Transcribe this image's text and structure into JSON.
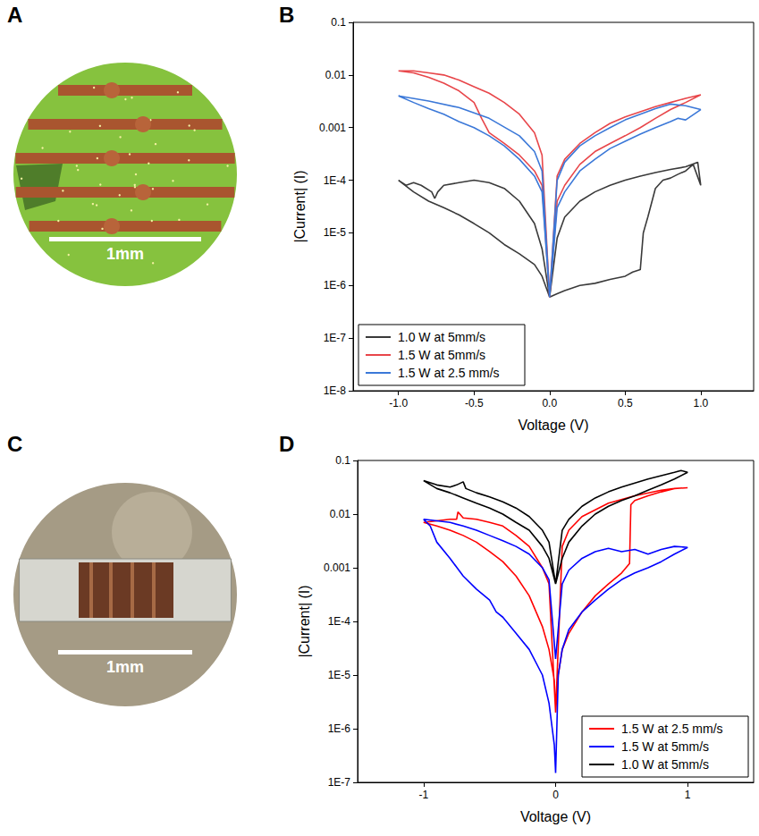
{
  "photos": [
    {
      "panel": "A",
      "scale_bar_label": "1mm"
    },
    {
      "panel": "C",
      "scale_bar_label": "1mm"
    }
  ],
  "chart_data": [
    {
      "panel": "B",
      "type": "line",
      "x_label": "Voltage (V)",
      "y_label": "|Current| (I)",
      "log": "y",
      "grid": false,
      "legend": "lower left",
      "xlim": [
        -1.3,
        1.35
      ],
      "xticks": [
        {
          "value": -1,
          "label": "-1.0"
        },
        {
          "value": -0.5,
          "label": "-0.5"
        },
        {
          "value": 0,
          "label": "0.0"
        },
        {
          "value": 0.5,
          "label": "0.5"
        },
        {
          "value": 1,
          "label": "1.0"
        }
      ],
      "ylim": [
        1e-08,
        0.1
      ],
      "yticks": [
        {
          "value": 1e-08,
          "label": "1E-8"
        },
        {
          "value": 1e-07,
          "label": "1E-7"
        },
        {
          "value": 1e-06,
          "label": "1E-6"
        },
        {
          "value": 1e-05,
          "label": "1E-5"
        },
        {
          "value": 0.0001,
          "label": "1E-4"
        },
        0.001,
        0.01,
        0.1
      ],
      "series": [
        {
          "name": "1.0 W at 5mm/s",
          "color": "#3a3a3a",
          "x": [
            0,
            0.05,
            0.1,
            0.2,
            0.3,
            0.4,
            0.5,
            0.55,
            0.6,
            0.62,
            0.65,
            0.7,
            0.75,
            0.8,
            0.85,
            0.9,
            0.95,
            1.0,
            0.98,
            0.9,
            0.8,
            0.7,
            0.6,
            0.5,
            0.4,
            0.3,
            0.2,
            0.1,
            0.05,
            0,
            -0.05,
            -0.1,
            -0.2,
            -0.3,
            -0.4,
            -0.5,
            -0.6,
            -0.7,
            -0.8,
            -0.9,
            -1.0,
            -0.95,
            -0.9,
            -0.85,
            -0.78,
            -0.76,
            -0.74,
            -0.7,
            -0.6,
            -0.5,
            -0.4,
            -0.3,
            -0.2,
            -0.1,
            -0.05,
            0
          ],
          "values": [
            6e-07,
            7e-07,
            8e-07,
            1e-06,
            1.1e-06,
            1.3e-06,
            1.5e-06,
            1.8e-06,
            2e-06,
            1e-05,
            2e-05,
            7e-05,
            0.0001,
            0.00011,
            0.00013,
            0.00015,
            0.0002,
            8e-05,
            0.00022,
            0.00018,
            0.00016,
            0.00014,
            0.00012,
            0.0001,
            8e-05,
            6e-05,
            4e-05,
            2e-05,
            8e-06,
            6e-07,
            1.5e-06,
            2.5e-06,
            4e-06,
            6e-06,
            1e-05,
            1.5e-05,
            2.2e-05,
            3e-05,
            4e-05,
            6e-05,
            0.0001,
            8e-05,
            9e-05,
            8e-05,
            6e-05,
            4.5e-05,
            6e-05,
            8e-05,
            9e-05,
            0.0001,
            9e-05,
            7e-05,
            4e-05,
            1.5e-05,
            5e-06,
            6e-07
          ]
        },
        {
          "name": "1.5 W at 5mm/s",
          "color": "#e8464a",
          "x": [
            0,
            0.05,
            0.1,
            0.2,
            0.3,
            0.4,
            0.5,
            0.6,
            0.7,
            0.8,
            0.9,
            1.0,
            0.9,
            0.8,
            0.7,
            0.6,
            0.5,
            0.4,
            0.3,
            0.2,
            0.1,
            0.05,
            0,
            -0.05,
            -0.1,
            -0.2,
            -0.3,
            -0.4,
            -0.45,
            -0.5,
            -0.6,
            -0.7,
            -0.8,
            -0.9,
            -1.0,
            -0.9,
            -0.8,
            -0.7,
            -0.6,
            -0.5,
            -0.4,
            -0.3,
            -0.2,
            -0.1,
            -0.05,
            0
          ],
          "values": [
            6e-07,
            4e-05,
            8e-05,
            0.0002,
            0.00035,
            0.0005,
            0.0007,
            0.001,
            0.0015,
            0.0022,
            0.003,
            0.0042,
            0.0036,
            0.003,
            0.0025,
            0.002,
            0.0016,
            0.0012,
            0.0008,
            0.0005,
            0.00025,
            0.00012,
            6e-07,
            8e-05,
            0.00015,
            0.0003,
            0.0005,
            0.0008,
            0.0015,
            0.003,
            0.005,
            0.007,
            0.009,
            0.011,
            0.012,
            0.012,
            0.011,
            0.01,
            0.008,
            0.006,
            0.0045,
            0.003,
            0.0018,
            0.0008,
            0.0003,
            6e-07
          ]
        },
        {
          "name": "1.5 W at 2.5 mm/s",
          "color": "#3b78d8",
          "x": [
            0,
            0.05,
            0.1,
            0.2,
            0.3,
            0.4,
            0.5,
            0.6,
            0.7,
            0.8,
            0.85,
            0.9,
            1.0,
            0.9,
            0.8,
            0.7,
            0.6,
            0.5,
            0.4,
            0.3,
            0.2,
            0.1,
            0.05,
            0,
            -0.05,
            -0.1,
            -0.2,
            -0.3,
            -0.4,
            -0.5,
            -0.6,
            -0.7,
            -0.8,
            -0.9,
            -1.0,
            -0.8,
            -0.6,
            -0.4,
            -0.2,
            -0.1,
            -0.05,
            0
          ],
          "values": [
            6e-07,
            3e-05,
            6e-05,
            0.00015,
            0.00025,
            0.0004,
            0.00055,
            0.00075,
            0.001,
            0.0013,
            0.0015,
            0.0014,
            0.0022,
            0.0026,
            0.0028,
            0.0023,
            0.0018,
            0.0014,
            0.001,
            0.0007,
            0.00045,
            0.00022,
            0.0001,
            6e-07,
            6e-05,
            0.00012,
            0.00025,
            0.00045,
            0.0007,
            0.001,
            0.0013,
            0.0018,
            0.0023,
            0.003,
            0.004,
            0.0032,
            0.0024,
            0.0015,
            0.0007,
            0.00035,
            0.00015,
            6e-07
          ]
        }
      ]
    },
    {
      "panel": "D",
      "type": "line",
      "x_label": "Voltage (V)",
      "y_label": "|Current| (I)",
      "log": "y",
      "grid": false,
      "legend": "lower right",
      "xlim": [
        -1.5,
        1.5
      ],
      "xticks": [
        -1,
        0,
        1
      ],
      "ylim": [
        1e-07,
        0.1
      ],
      "yticks": [
        {
          "value": 1e-07,
          "label": "1E-7"
        },
        {
          "value": 1e-06,
          "label": "1E-6"
        },
        {
          "value": 1e-05,
          "label": "1E-5"
        },
        {
          "value": 0.0001,
          "label": "1E-4"
        },
        0.001,
        0.01,
        0.1
      ],
      "series": [
        {
          "name": "1.5 W at 2.5 mm/s",
          "color": "#ff0000",
          "x": [
            0,
            0.02,
            0.05,
            0.1,
            0.2,
            0.3,
            0.4,
            0.5,
            0.56,
            0.57,
            0.6,
            0.7,
            0.8,
            0.9,
            1.0,
            0.9,
            0.8,
            0.6,
            0.4,
            0.2,
            0.1,
            0.05,
            0,
            -0.05,
            -0.1,
            -0.2,
            -0.3,
            -0.4,
            -0.5,
            -0.6,
            -0.7,
            -0.74,
            -0.75,
            -0.8,
            -0.9,
            -1.0,
            -0.9,
            -0.8,
            -0.7,
            -0.6,
            -0.5,
            -0.4,
            -0.3,
            -0.2,
            -0.1,
            -0.05,
            -0.01,
            0
          ],
          "values": [
            2e-06,
            1e-05,
            3e-05,
            6e-05,
            0.00015,
            0.0003,
            0.0005,
            0.0008,
            0.0012,
            0.015,
            0.018,
            0.022,
            0.026,
            0.03,
            0.031,
            0.03,
            0.028,
            0.022,
            0.016,
            0.009,
            0.005,
            0.0025,
            2e-06,
            0.0005,
            0.001,
            0.0025,
            0.004,
            0.006,
            0.007,
            0.008,
            0.0085,
            0.011,
            0.008,
            0.008,
            0.0075,
            0.007,
            0.006,
            0.005,
            0.004,
            0.003,
            0.002,
            0.0013,
            0.0007,
            0.0003,
            8e-05,
            3e-05,
            8e-06,
            2e-06
          ]
        },
        {
          "name": "1.5 W at 5mm/s",
          "color": "#0000ff",
          "x": [
            0,
            0.02,
            0.05,
            0.1,
            0.2,
            0.3,
            0.4,
            0.5,
            0.6,
            0.7,
            0.8,
            0.9,
            1.0,
            0.9,
            0.8,
            0.7,
            0.6,
            0.5,
            0.4,
            0.3,
            0.2,
            0.1,
            0.05,
            0,
            -0.05,
            -0.1,
            -0.2,
            -0.3,
            -0.4,
            -0.5,
            -0.6,
            -0.7,
            -0.8,
            -0.9,
            -1.0,
            -0.95,
            -0.9,
            -0.8,
            -0.7,
            -0.6,
            -0.5,
            -0.45,
            -0.4,
            -0.3,
            -0.2,
            -0.1,
            -0.05,
            -0.01,
            0
          ],
          "values": [
            1.5e-07,
            1e-05,
            3e-05,
            7e-05,
            0.00015,
            0.00025,
            0.0004,
            0.0006,
            0.0008,
            0.001,
            0.0013,
            0.0018,
            0.0024,
            0.0025,
            0.0022,
            0.0018,
            0.0022,
            0.002,
            0.0023,
            0.002,
            0.0015,
            0.0009,
            0.0005,
            2e-05,
            0.0006,
            0.001,
            0.0018,
            0.0025,
            0.0032,
            0.004,
            0.005,
            0.006,
            0.007,
            0.0075,
            0.008,
            0.006,
            0.003,
            0.0015,
            0.0007,
            0.0004,
            0.00025,
            0.00015,
            0.00012,
            6e-05,
            3e-05,
            1e-05,
            3e-06,
            5e-07,
            1.5e-07
          ]
        },
        {
          "name": "1.0 W at 5mm/s",
          "color": "#000000",
          "x": [
            0,
            0.05,
            0.1,
            0.2,
            0.3,
            0.4,
            0.5,
            0.6,
            0.7,
            0.8,
            0.9,
            1.0,
            0.95,
            0.9,
            0.8,
            0.7,
            0.6,
            0.5,
            0.4,
            0.3,
            0.2,
            0.1,
            0.05,
            0,
            -0.05,
            -0.1,
            -0.2,
            -0.3,
            -0.4,
            -0.5,
            -0.6,
            -0.68,
            -0.7,
            -0.75,
            -0.8,
            -0.9,
            -1.0,
            -0.9,
            -0.8,
            -0.7,
            -0.6,
            -0.5,
            -0.4,
            -0.3,
            -0.2,
            -0.1,
            -0.05,
            0
          ],
          "values": [
            0.0005,
            0.0015,
            0.003,
            0.006,
            0.01,
            0.014,
            0.018,
            0.022,
            0.028,
            0.035,
            0.045,
            0.06,
            0.065,
            0.06,
            0.052,
            0.045,
            0.038,
            0.032,
            0.026,
            0.02,
            0.014,
            0.008,
            0.005,
            0.0005,
            0.003,
            0.005,
            0.009,
            0.013,
            0.017,
            0.021,
            0.025,
            0.03,
            0.04,
            0.035,
            0.032,
            0.035,
            0.042,
            0.03,
            0.025,
            0.02,
            0.016,
            0.013,
            0.01,
            0.007,
            0.005,
            0.0025,
            0.0015,
            0.0005
          ]
        }
      ]
    }
  ]
}
